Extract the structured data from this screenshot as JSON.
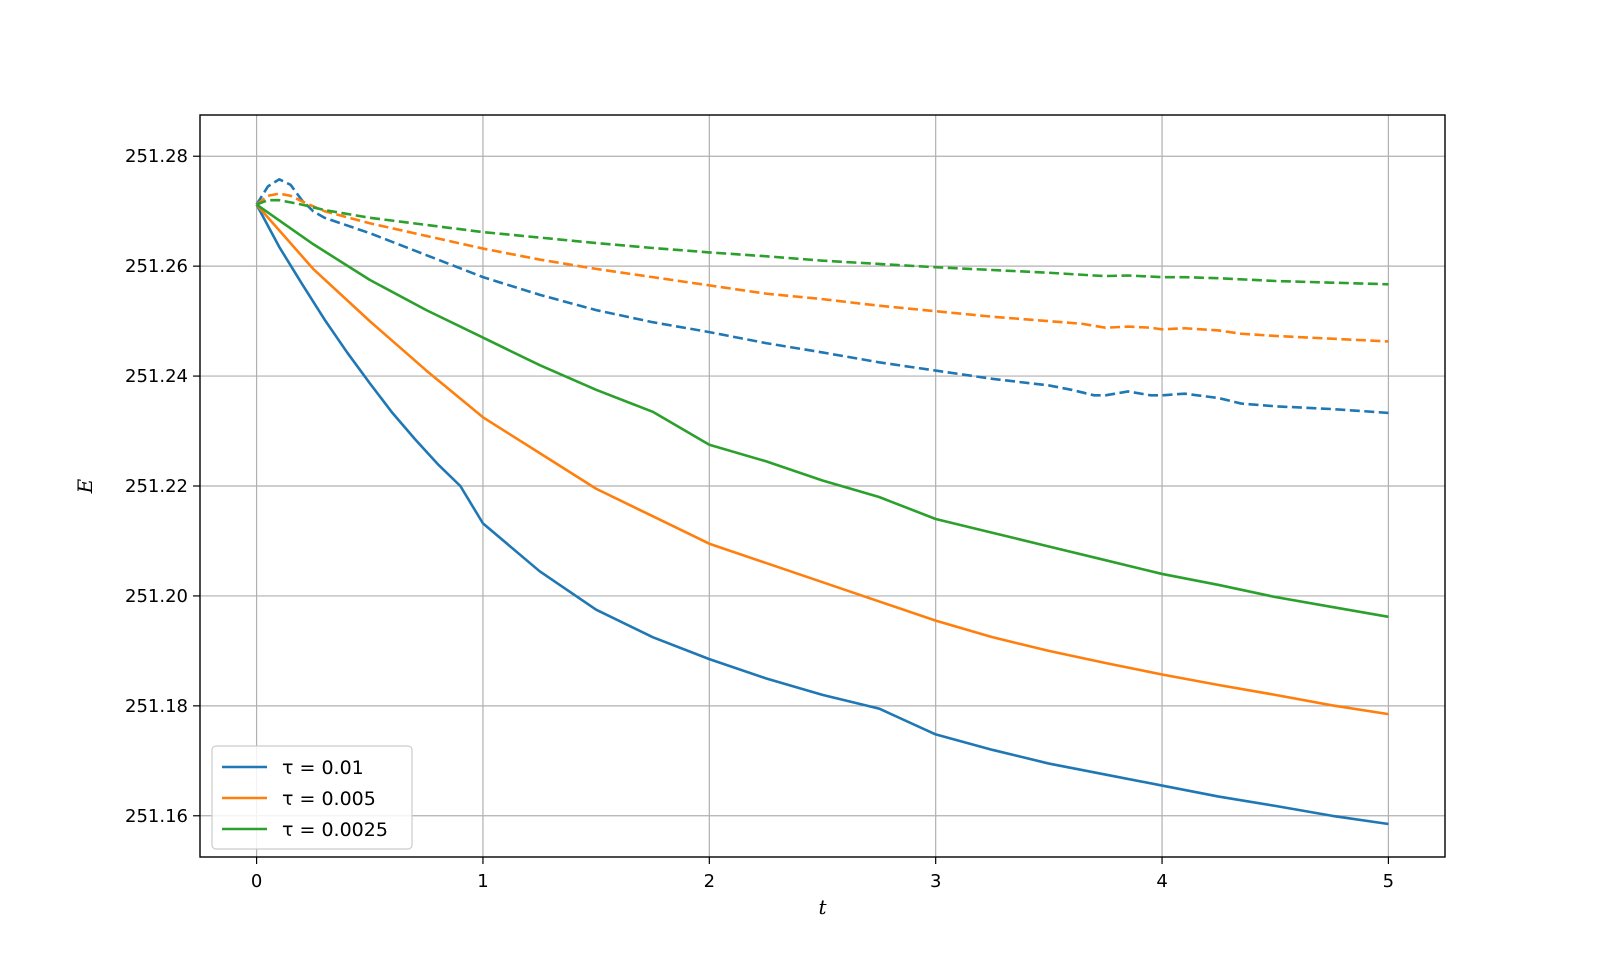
{
  "chart_data": {
    "type": "line",
    "title": "",
    "xlabel": "t",
    "ylabel": "E",
    "xlim": [
      -0.25,
      5.25
    ],
    "ylim": [
      251.1525,
      251.2875
    ],
    "xticks": [
      0,
      1,
      2,
      3,
      4,
      5
    ],
    "xtick_labels": [
      "0",
      "1",
      "2",
      "3",
      "4",
      "5"
    ],
    "yticks": [
      251.16,
      251.18,
      251.2,
      251.22,
      251.24,
      251.26,
      251.28
    ],
    "ytick_labels": [
      "251.16",
      "251.18",
      "251.20",
      "251.22",
      "251.24",
      "251.26",
      "251.28"
    ],
    "grid": true,
    "legend_position": "lower-left",
    "legend": [
      {
        "label": "τ = 0.01",
        "color": "#1f77b4"
      },
      {
        "label": "τ = 0.005",
        "color": "#ff7f0e"
      },
      {
        "label": "τ = 0.0025",
        "color": "#2ca02c"
      }
    ],
    "series": [
      {
        "color": "#1f77b4",
        "style": "solid",
        "x": [
          0,
          0.1,
          0.2,
          0.3,
          0.4,
          0.5,
          0.6,
          0.7,
          0.8,
          0.9,
          1.0,
          1.25,
          1.5,
          1.75,
          2.0,
          2.25,
          2.5,
          2.75,
          3.0,
          3.25,
          3.5,
          3.75,
          4.0,
          4.25,
          4.5,
          4.75,
          5.0
        ],
        "y": [
          251.2712,
          251.2635,
          251.2568,
          251.2503,
          251.2443,
          251.2387,
          251.2333,
          251.2285,
          251.224,
          251.22,
          251.2132,
          251.2045,
          251.1975,
          251.1925,
          251.1885,
          251.185,
          251.182,
          251.1795,
          251.1748,
          251.172,
          251.1695,
          251.1675,
          251.1655,
          251.1635,
          251.1618,
          251.16,
          251.1585
        ]
      },
      {
        "color": "#ff7f0e",
        "style": "solid",
        "x": [
          0,
          0.25,
          0.5,
          0.75,
          1.0,
          1.25,
          1.5,
          1.75,
          2.0,
          2.25,
          2.5,
          2.75,
          3.0,
          3.25,
          3.5,
          3.75,
          4.0,
          4.25,
          4.5,
          4.75,
          5.0
        ],
        "y": [
          251.2712,
          251.2595,
          251.25,
          251.241,
          251.2325,
          251.226,
          251.2195,
          251.2145,
          251.2095,
          251.206,
          251.2025,
          251.199,
          251.1955,
          251.1925,
          251.19,
          251.1878,
          251.1857,
          251.1838,
          251.182,
          251.1801,
          251.1785
        ]
      },
      {
        "color": "#2ca02c",
        "style": "solid",
        "x": [
          0,
          0.25,
          0.5,
          0.75,
          1.0,
          1.25,
          1.5,
          1.75,
          2.0,
          2.25,
          2.5,
          2.75,
          3.0,
          3.25,
          3.5,
          3.75,
          4.0,
          4.25,
          4.5,
          4.75,
          5.0
        ],
        "y": [
          251.2712,
          251.264,
          251.2575,
          251.252,
          251.247,
          251.242,
          251.2375,
          251.2335,
          251.2275,
          251.2245,
          251.221,
          251.218,
          251.214,
          251.2115,
          251.209,
          251.2065,
          251.204,
          251.202,
          251.1998,
          251.198,
          251.1962
        ]
      },
      {
        "color": "#1f77b4",
        "style": "dashed",
        "x": [
          0,
          0.05,
          0.1,
          0.15,
          0.2,
          0.25,
          0.3,
          0.5,
          0.75,
          1.0,
          1.25,
          1.5,
          1.75,
          2.0,
          2.25,
          2.5,
          2.75,
          3.0,
          3.25,
          3.5,
          3.6,
          3.7,
          3.75,
          3.85,
          3.95,
          4.0,
          4.1,
          4.25,
          4.35,
          4.5,
          4.75,
          5.0
        ],
        "y": [
          251.2712,
          251.2745,
          251.2758,
          251.2748,
          251.272,
          251.27,
          251.2688,
          251.266,
          251.262,
          251.258,
          251.2548,
          251.252,
          251.2498,
          251.248,
          251.246,
          251.2443,
          251.2425,
          251.241,
          251.2395,
          251.2383,
          251.2375,
          251.2365,
          251.2365,
          251.2372,
          251.2365,
          251.2365,
          251.2368,
          251.236,
          251.235,
          251.2345,
          251.234,
          251.2333
        ]
      },
      {
        "color": "#ff7f0e",
        "style": "dashed",
        "x": [
          0,
          0.05,
          0.1,
          0.15,
          0.2,
          0.3,
          0.5,
          0.75,
          1.0,
          1.25,
          1.5,
          1.75,
          2.0,
          2.25,
          2.5,
          2.75,
          3.0,
          3.25,
          3.5,
          3.65,
          3.75,
          3.85,
          3.95,
          4.0,
          4.1,
          4.25,
          4.35,
          4.5,
          4.75,
          5.0
        ],
        "y": [
          251.2712,
          251.2728,
          251.2732,
          251.2728,
          251.2718,
          251.27,
          251.2678,
          251.2655,
          251.2632,
          251.2612,
          251.2595,
          251.258,
          251.2565,
          251.255,
          251.254,
          251.2528,
          251.2518,
          251.2508,
          251.25,
          251.2495,
          251.2488,
          251.249,
          251.2488,
          251.2485,
          251.2487,
          251.2483,
          251.2477,
          251.2473,
          251.2468,
          251.2463
        ]
      },
      {
        "color": "#2ca02c",
        "style": "dashed",
        "x": [
          0,
          0.05,
          0.1,
          0.2,
          0.3,
          0.5,
          0.75,
          1.0,
          1.25,
          1.5,
          1.75,
          2.0,
          2.25,
          2.5,
          2.75,
          3.0,
          3.25,
          3.5,
          3.7,
          3.75,
          3.85,
          4.0,
          4.1,
          4.25,
          4.5,
          4.75,
          5.0
        ],
        "y": [
          251.2712,
          251.272,
          251.272,
          251.2712,
          251.2702,
          251.2688,
          251.2675,
          251.2662,
          251.2652,
          251.2642,
          251.2633,
          251.2625,
          251.2618,
          251.261,
          251.2604,
          251.2598,
          251.2593,
          251.2588,
          251.2583,
          251.2582,
          251.2583,
          251.258,
          251.258,
          251.2578,
          251.2573,
          251.257,
          251.2567
        ]
      }
    ]
  }
}
